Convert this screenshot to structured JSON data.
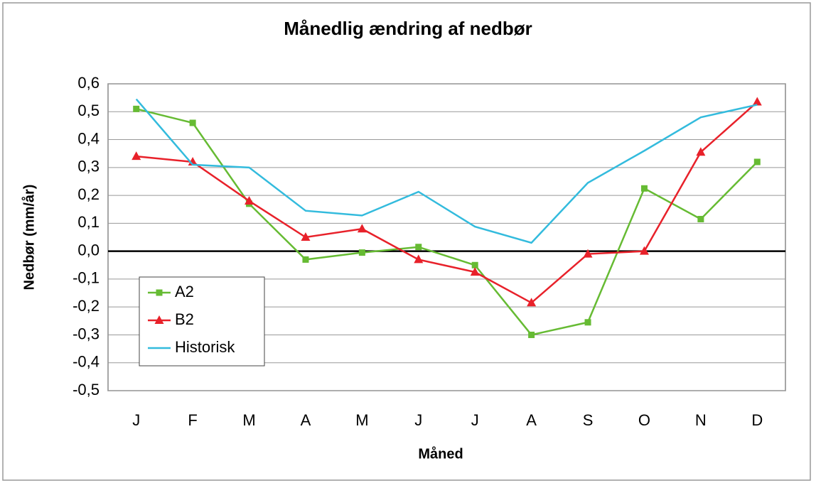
{
  "chart_data": {
    "type": "line",
    "title": "Månedlig ændring af nedbør",
    "x_label": "Måned",
    "y_label": "Nedbør (mm/år)",
    "categories": [
      "J",
      "F",
      "M",
      "A",
      "M",
      "J",
      "J",
      "A",
      "S",
      "O",
      "N",
      "D"
    ],
    "series": [
      {
        "name": "A2",
        "color": "#66bb33",
        "marker": "square",
        "values": [
          0.51,
          0.46,
          0.17,
          -0.03,
          -0.005,
          0.015,
          -0.05,
          -0.3,
          -0.255,
          0.225,
          0.115,
          0.32
        ]
      },
      {
        "name": "B2",
        "color": "#e8212a",
        "marker": "triangle",
        "values": [
          0.34,
          0.32,
          0.18,
          0.05,
          0.08,
          -0.03,
          -0.075,
          -0.185,
          -0.01,
          0.0,
          0.355,
          0.535
        ]
      },
      {
        "name": "Historisk",
        "color": "#33bbdd",
        "values": [
          0.545,
          0.31,
          0.3,
          0.145,
          0.128,
          0.213,
          0.088,
          0.03,
          0.245,
          0.36,
          0.48,
          0.525
        ]
      }
    ],
    "ylim": [
      -0.5,
      0.6
    ],
    "yticks": [
      {
        "value": -0.5,
        "label": "-0,5"
      },
      {
        "value": -0.4,
        "label": "-0,4"
      },
      {
        "value": -0.3,
        "label": "-0,3"
      },
      {
        "value": -0.2,
        "label": "-0,2"
      },
      {
        "value": -0.1,
        "label": "-0,1"
      },
      {
        "value": 0,
        "label": "0,0"
      },
      {
        "value": 0.1,
        "label": "0,1"
      },
      {
        "value": 0.2,
        "label": "0,2"
      },
      {
        "value": 0.3,
        "label": "0,3"
      },
      {
        "value": 0.4,
        "label": "0,4"
      },
      {
        "value": 0.5,
        "label": "0,5"
      },
      {
        "value": 0.6,
        "label": "0,6"
      }
    ],
    "grid": true,
    "legend": "lower-left"
  }
}
